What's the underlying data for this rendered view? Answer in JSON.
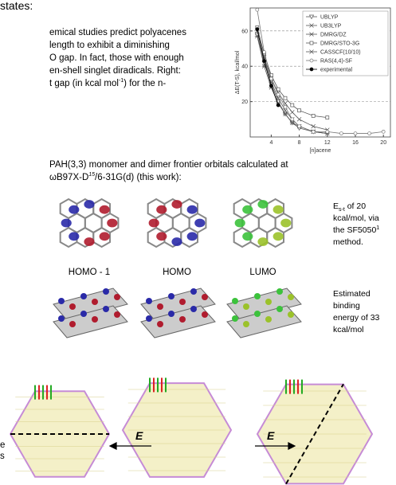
{
  "header": {
    "title": "states:"
  },
  "intro": {
    "lines": [
      "emical studies predict polyacenes",
      "length to exhibit a diminishing",
      "O gap. In fact, those with enough",
      "en-shell singlet diradicals. Right:"
    ],
    "last": [
      "t gap (in kcal mol",
      "-1",
      ") for the n-"
    ]
  },
  "chart_data": {
    "type": "line",
    "xlabel": "[n]acene",
    "ylabel": "ΔE(T-S), kcal/mol",
    "xlim": [
      1,
      21
    ],
    "ylim": [
      0,
      73
    ],
    "xticks": [
      4,
      8,
      12,
      16,
      20
    ],
    "yticks": [
      20,
      40,
      60
    ],
    "grid": true,
    "legend": "upper right",
    "series": [
      {
        "name": "UBLYP",
        "color": "#555",
        "marker": "triangle",
        "x": [
          2,
          3,
          4,
          5,
          6,
          7,
          8,
          10,
          12
        ],
        "values": [
          58,
          42,
          30,
          20,
          13,
          8,
          5,
          3,
          2
        ]
      },
      {
        "name": "UB3LYP",
        "color": "#555",
        "marker": "cross",
        "x": [
          2,
          3,
          4,
          5,
          6,
          7,
          8,
          10,
          12
        ],
        "values": [
          60,
          44,
          31,
          22,
          15,
          10,
          6,
          3,
          2
        ]
      },
      {
        "name": "DMRG/DZ",
        "color": "#555",
        "marker": "star",
        "x": [
          2,
          3,
          4,
          5,
          6,
          7,
          8,
          10,
          12
        ],
        "values": [
          57,
          40,
          28,
          19,
          13,
          8,
          6,
          3,
          2
        ]
      },
      {
        "name": "DMRG/STO-3G",
        "color": "#555",
        "marker": "square",
        "x": [
          2,
          3,
          4,
          5,
          6,
          7,
          8,
          10,
          12
        ],
        "values": [
          62,
          47,
          35,
          27,
          22,
          18,
          15,
          12,
          11
        ]
      },
      {
        "name": "CASSCF(10/10)",
        "color": "#555",
        "marker": "cross",
        "x": [
          2,
          3,
          4,
          5,
          6,
          7,
          8,
          10,
          12
        ],
        "values": [
          60,
          45,
          33,
          25,
          19,
          14,
          10,
          6,
          4
        ]
      },
      {
        "name": "RAS(4,4)-SF",
        "color": "#777",
        "marker": "circle",
        "x": [
          2,
          3,
          4,
          5,
          6,
          7,
          8,
          10,
          12,
          14,
          16,
          18,
          20
        ],
        "values": [
          72,
          48,
          33,
          24,
          17,
          10,
          6,
          3,
          3,
          2,
          2,
          2,
          3
        ]
      },
      {
        "name": "experimental",
        "color": "#000",
        "marker": "dot",
        "x": [
          2,
          3,
          4,
          5
        ],
        "values": [
          61,
          43,
          29,
          18
        ]
      }
    ]
  },
  "orbitals": {
    "caption": [
      "PAH(3,3) monomer and dimer frontier orbitals calculated at",
      "ωB97X-D",
      "15",
      "/6-31G(d) (this work):"
    ],
    "labels": [
      "HOMO - 1",
      "HOMO",
      "LUMO"
    ],
    "note1": [
      "E",
      "s-t",
      " of 20",
      "kcal/mol, via",
      "the SF5050",
      "1",
      "method."
    ],
    "note2": [
      "Estimated",
      "binding",
      "energy of 33",
      "kcal/mol"
    ]
  },
  "field": {
    "labels": [
      "E",
      "E"
    ],
    "cut": [
      "e",
      "s"
    ]
  }
}
